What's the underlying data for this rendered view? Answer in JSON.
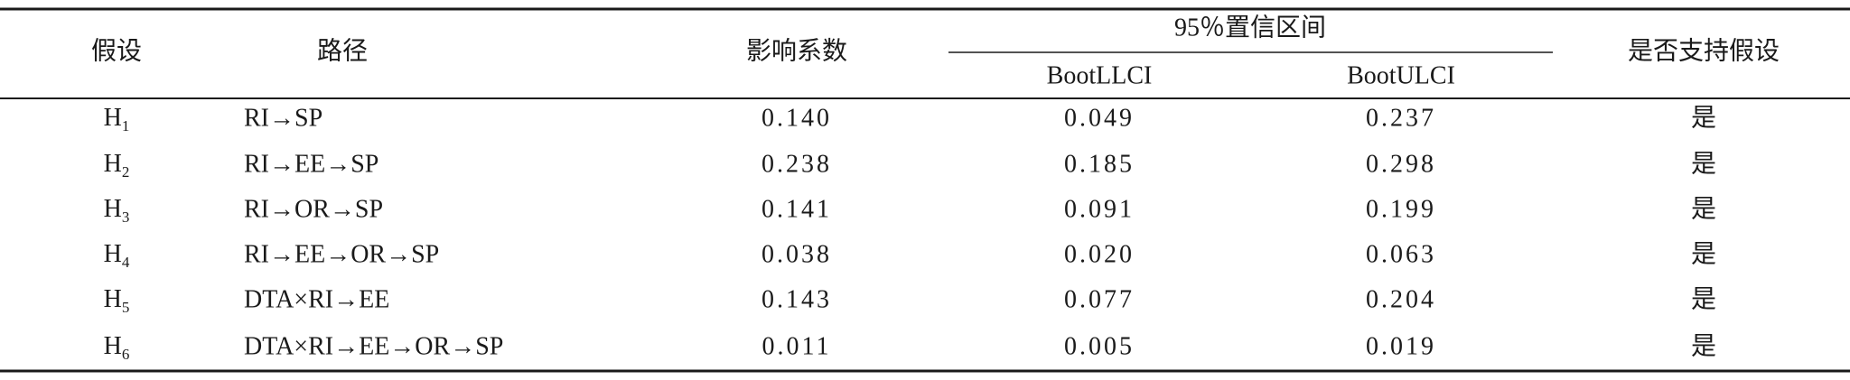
{
  "table": {
    "header": {
      "hypothesis": "假设",
      "path": "路径",
      "effect": "影响系数",
      "ci": "95％置信区间",
      "llci": "BootLLCI",
      "ulci": "BootULCI",
      "supported": "是否支持假设"
    },
    "rows": [
      {
        "hypothesis": {
          "letter": "H",
          "sub": "1"
        },
        "path": "RI→SP",
        "effect": "0.140",
        "llci": "0.049",
        "ulci": "0.237",
        "supported": "是"
      },
      {
        "hypothesis": {
          "letter": "H",
          "sub": "2"
        },
        "path": "RI→EE→SP",
        "effect": "0.238",
        "llci": "0.185",
        "ulci": "0.298",
        "supported": "是"
      },
      {
        "hypothesis": {
          "letter": "H",
          "sub": "3"
        },
        "path": "RI→OR→SP",
        "effect": "0.141",
        "llci": "0.091",
        "ulci": "0.199",
        "supported": "是"
      },
      {
        "hypothesis": {
          "letter": "H",
          "sub": "4"
        },
        "path": "RI→EE→OR→SP",
        "effect": "0.038",
        "llci": "0.020",
        "ulci": "0.063",
        "supported": "是"
      },
      {
        "hypothesis": {
          "letter": "H",
          "sub": "5"
        },
        "path": "DTA×RI→EE",
        "effect": "0.143",
        "llci": "0.077",
        "ulci": "0.204",
        "supported": "是"
      },
      {
        "hypothesis": {
          "letter": "H",
          "sub": "6"
        },
        "path": "DTA×RI→EE→OR→SP",
        "effect": "0.011",
        "llci": "0.005",
        "ulci": "0.019",
        "supported": "是"
      }
    ]
  }
}
